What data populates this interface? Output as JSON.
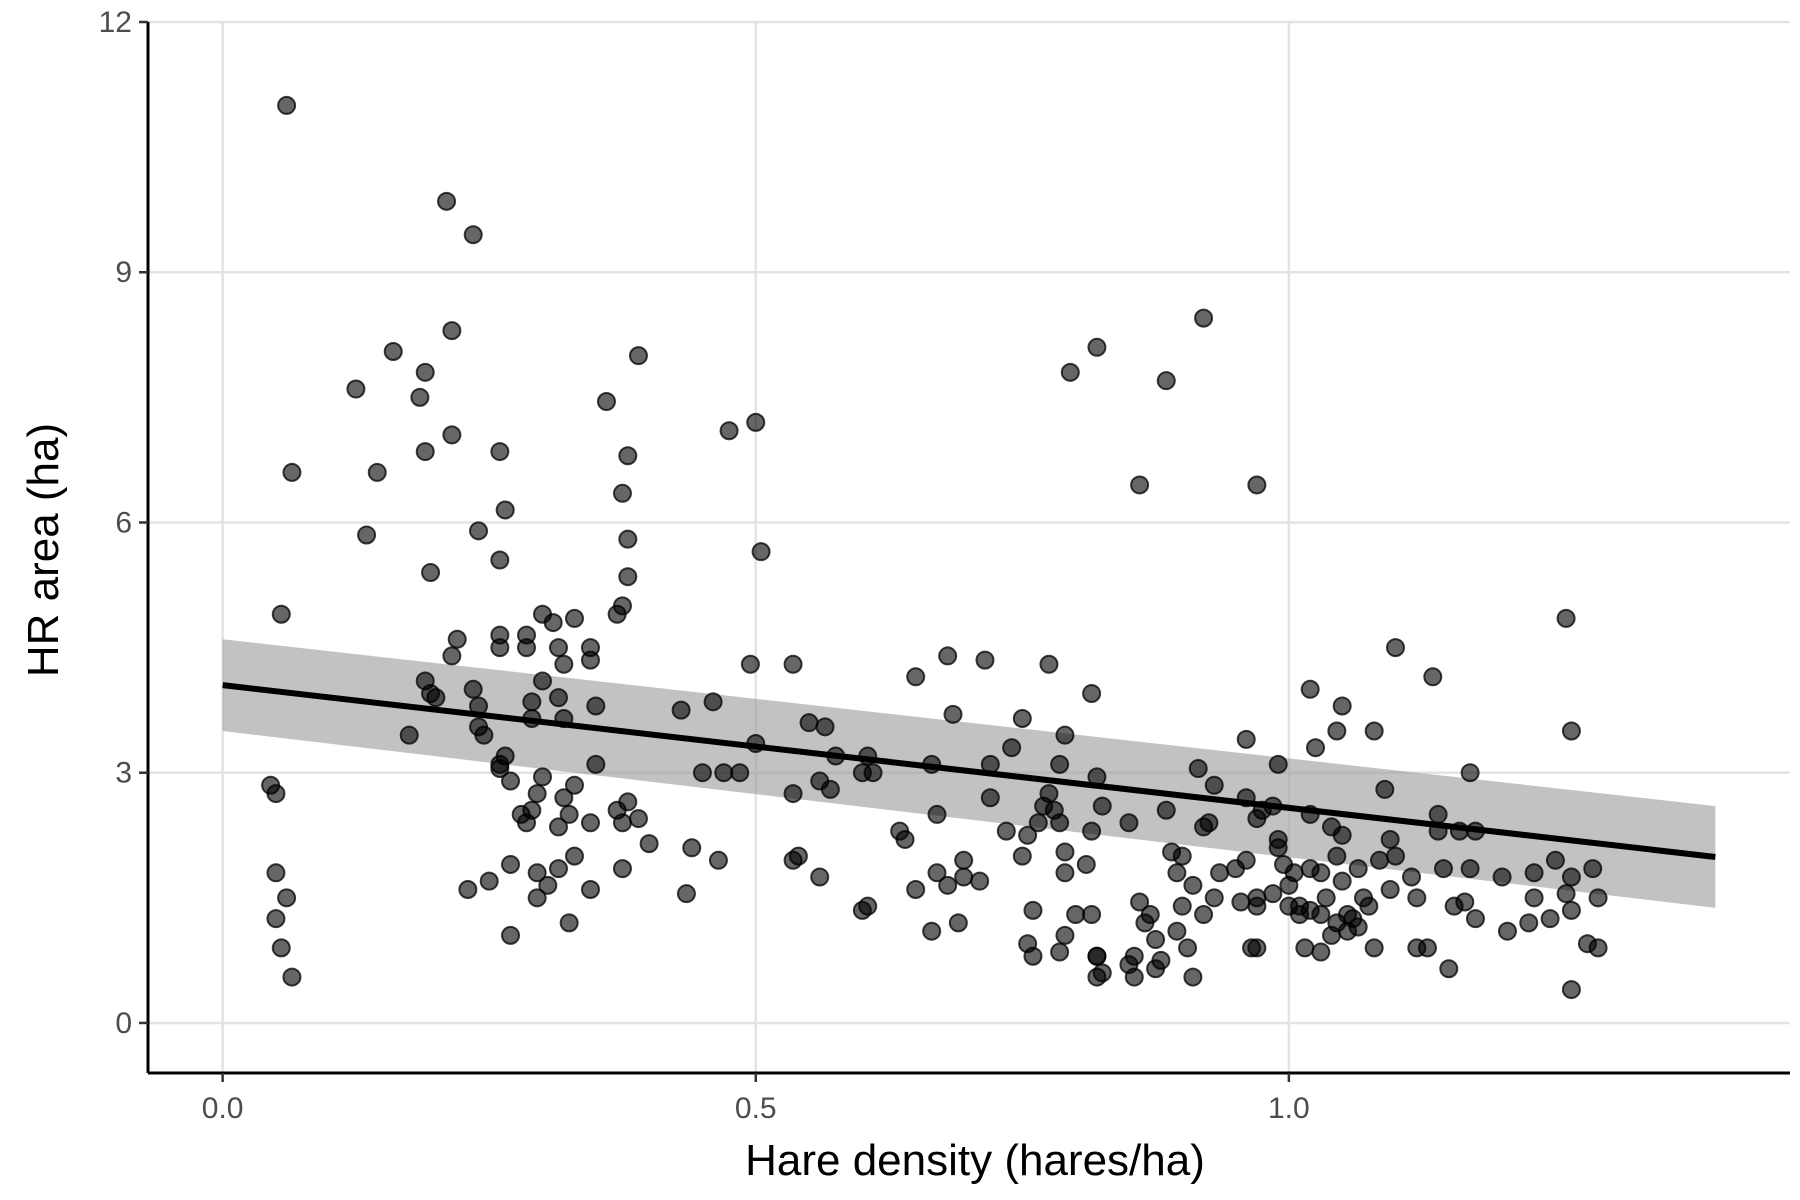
{
  "chart_data": {
    "type": "scatter",
    "title": "",
    "xlabel": "Hare density (hares/ha)",
    "ylabel": "HR area (ha)",
    "xlim": [
      -0.07,
      1.47
    ],
    "ylim": [
      -0.6,
      12
    ],
    "x_ticks": [
      0.0,
      0.5,
      1.0
    ],
    "x_tick_labels": [
      "0.0",
      "0.5",
      "1.0"
    ],
    "y_ticks": [
      0,
      3,
      6,
      9,
      12
    ],
    "y_tick_labels": [
      "0",
      "3",
      "6",
      "9",
      "12"
    ],
    "grid": true,
    "legend": "none",
    "colors": {
      "points": "#000000",
      "band": "#999999",
      "trend": "#000000",
      "grid": "#e3e3e3"
    },
    "trend_line": {
      "x": [
        0.0,
        1.4
      ],
      "y": [
        4.05,
        1.99
      ],
      "ci_lower": [
        3.5,
        1.38
      ],
      "ci_upper": [
        4.6,
        2.6
      ]
    },
    "points": [
      [
        0.06,
        11.0
      ],
      [
        0.065,
        6.6
      ],
      [
        0.055,
        4.9
      ],
      [
        0.045,
        2.85
      ],
      [
        0.05,
        2.75
      ],
      [
        0.05,
        1.8
      ],
      [
        0.05,
        1.25
      ],
      [
        0.06,
        1.5
      ],
      [
        0.055,
        0.9
      ],
      [
        0.065,
        0.55
      ],
      [
        0.21,
        9.85
      ],
      [
        0.235,
        9.45
      ],
      [
        0.215,
        8.3
      ],
      [
        0.16,
        8.05
      ],
      [
        0.125,
        7.6
      ],
      [
        0.19,
        7.8
      ],
      [
        0.185,
        7.5
      ],
      [
        0.215,
        7.05
      ],
      [
        0.19,
        6.85
      ],
      [
        0.145,
        6.6
      ],
      [
        0.135,
        5.85
      ],
      [
        0.195,
        5.4
      ],
      [
        0.24,
        5.9
      ],
      [
        0.26,
        6.85
      ],
      [
        0.265,
        6.15
      ],
      [
        0.26,
        5.55
      ],
      [
        0.22,
        4.6
      ],
      [
        0.215,
        4.4
      ],
      [
        0.19,
        4.1
      ],
      [
        0.2,
        3.9
      ],
      [
        0.195,
        3.95
      ],
      [
        0.175,
        3.45
      ],
      [
        0.235,
        4.0
      ],
      [
        0.24,
        3.8
      ],
      [
        0.24,
        3.55
      ],
      [
        0.245,
        3.45
      ],
      [
        0.26,
        3.1
      ],
      [
        0.265,
        3.2
      ],
      [
        0.26,
        3.05
      ],
      [
        0.27,
        2.9
      ],
      [
        0.25,
        1.7
      ],
      [
        0.23,
        1.6
      ],
      [
        0.27,
        1.9
      ],
      [
        0.27,
        1.05
      ],
      [
        0.3,
        4.9
      ],
      [
        0.31,
        4.8
      ],
      [
        0.285,
        4.65
      ],
      [
        0.26,
        4.65
      ],
      [
        0.26,
        4.5
      ],
      [
        0.285,
        4.5
      ],
      [
        0.315,
        4.5
      ],
      [
        0.32,
        4.3
      ],
      [
        0.33,
        4.85
      ],
      [
        0.3,
        4.1
      ],
      [
        0.29,
        3.85
      ],
      [
        0.315,
        3.9
      ],
      [
        0.32,
        3.65
      ],
      [
        0.29,
        3.65
      ],
      [
        0.3,
        2.95
      ],
      [
        0.295,
        2.75
      ],
      [
        0.33,
        2.85
      ],
      [
        0.32,
        2.7
      ],
      [
        0.29,
        2.55
      ],
      [
        0.28,
        2.5
      ],
      [
        0.285,
        2.4
      ],
      [
        0.315,
        2.35
      ],
      [
        0.325,
        2.5
      ],
      [
        0.33,
        2.0
      ],
      [
        0.315,
        1.85
      ],
      [
        0.295,
        1.8
      ],
      [
        0.305,
        1.65
      ],
      [
        0.295,
        1.5
      ],
      [
        0.325,
        1.2
      ],
      [
        0.345,
        4.5
      ],
      [
        0.345,
        4.35
      ],
      [
        0.36,
        7.45
      ],
      [
        0.37,
        4.9
      ],
      [
        0.375,
        5.0
      ],
      [
        0.38,
        6.8
      ],
      [
        0.375,
        6.35
      ],
      [
        0.38,
        5.8
      ],
      [
        0.38,
        5.35
      ],
      [
        0.39,
        8.0
      ],
      [
        0.35,
        3.8
      ],
      [
        0.35,
        3.1
      ],
      [
        0.345,
        2.4
      ],
      [
        0.37,
        2.55
      ],
      [
        0.38,
        2.65
      ],
      [
        0.375,
        2.4
      ],
      [
        0.39,
        2.45
      ],
      [
        0.375,
        1.85
      ],
      [
        0.345,
        1.6
      ],
      [
        0.4,
        2.15
      ],
      [
        0.43,
        3.75
      ],
      [
        0.46,
        3.85
      ],
      [
        0.45,
        3.0
      ],
      [
        0.47,
        3.0
      ],
      [
        0.44,
        2.1
      ],
      [
        0.465,
        1.95
      ],
      [
        0.435,
        1.55
      ],
      [
        0.475,
        7.1
      ],
      [
        0.5,
        7.2
      ],
      [
        0.505,
        5.65
      ],
      [
        0.495,
        4.3
      ],
      [
        0.485,
        3.0
      ],
      [
        0.5,
        3.35
      ],
      [
        0.535,
        4.3
      ],
      [
        0.55,
        3.6
      ],
      [
        0.565,
        3.55
      ],
      [
        0.535,
        2.75
      ],
      [
        0.56,
        2.9
      ],
      [
        0.57,
        2.8
      ],
      [
        0.575,
        3.2
      ],
      [
        0.54,
        2.0
      ],
      [
        0.535,
        1.95
      ],
      [
        0.56,
        1.75
      ],
      [
        0.605,
        3.2
      ],
      [
        0.61,
        3.0
      ],
      [
        0.6,
        3.0
      ],
      [
        0.6,
        1.35
      ],
      [
        0.605,
        1.4
      ],
      [
        0.65,
        4.15
      ],
      [
        0.68,
        4.4
      ],
      [
        0.685,
        3.7
      ],
      [
        0.715,
        4.35
      ],
      [
        0.665,
        3.1
      ],
      [
        0.635,
        2.3
      ],
      [
        0.64,
        2.2
      ],
      [
        0.67,
        2.5
      ],
      [
        0.65,
        1.6
      ],
      [
        0.665,
        1.1
      ],
      [
        0.68,
        1.65
      ],
      [
        0.67,
        1.8
      ],
      [
        0.695,
        1.95
      ],
      [
        0.695,
        1.75
      ],
      [
        0.71,
        1.7
      ],
      [
        0.69,
        1.2
      ],
      [
        0.72,
        3.1
      ],
      [
        0.72,
        2.7
      ],
      [
        0.74,
        3.3
      ],
      [
        0.75,
        3.65
      ],
      [
        0.735,
        2.3
      ],
      [
        0.755,
        2.25
      ],
      [
        0.765,
        2.4
      ],
      [
        0.775,
        4.3
      ],
      [
        0.77,
        2.6
      ],
      [
        0.78,
        2.55
      ],
      [
        0.75,
        2.0
      ],
      [
        0.76,
        1.35
      ],
      [
        0.755,
        0.95
      ],
      [
        0.76,
        0.8
      ],
      [
        0.79,
        3.45
      ],
      [
        0.785,
        3.1
      ],
      [
        0.775,
        2.75
      ],
      [
        0.785,
        2.4
      ],
      [
        0.79,
        2.05
      ],
      [
        0.8,
        1.3
      ],
      [
        0.79,
        1.05
      ],
      [
        0.785,
        0.85
      ],
      [
        0.79,
        1.8
      ],
      [
        0.795,
        7.8
      ],
      [
        0.82,
        8.1
      ],
      [
        0.815,
        3.95
      ],
      [
        0.82,
        2.95
      ],
      [
        0.825,
        2.6
      ],
      [
        0.815,
        2.3
      ],
      [
        0.81,
        1.9
      ],
      [
        0.815,
        1.3
      ],
      [
        0.82,
        0.8
      ],
      [
        0.82,
        0.8
      ],
      [
        0.82,
        0.55
      ],
      [
        0.825,
        0.6
      ],
      [
        0.86,
        6.45
      ],
      [
        0.885,
        7.7
      ],
      [
        0.92,
        8.45
      ],
      [
        0.85,
        2.4
      ],
      [
        0.86,
        1.45
      ],
      [
        0.87,
        1.3
      ],
      [
        0.855,
        0.8
      ],
      [
        0.865,
        1.2
      ],
      [
        0.85,
        0.7
      ],
      [
        0.855,
        0.55
      ],
      [
        0.875,
        1.0
      ],
      [
        0.88,
        0.75
      ],
      [
        0.875,
        0.65
      ],
      [
        0.89,
        2.05
      ],
      [
        0.885,
        2.55
      ],
      [
        0.9,
        2.0
      ],
      [
        0.895,
        1.8
      ],
      [
        0.91,
        1.65
      ],
      [
        0.9,
        1.4
      ],
      [
        0.895,
        1.1
      ],
      [
        0.905,
        0.9
      ],
      [
        0.91,
        0.55
      ],
      [
        0.92,
        1.3
      ],
      [
        0.915,
        3.05
      ],
      [
        0.93,
        2.85
      ],
      [
        0.925,
        2.4
      ],
      [
        0.92,
        2.35
      ],
      [
        0.935,
        1.8
      ],
      [
        0.93,
        1.5
      ],
      [
        0.95,
        1.85
      ],
      [
        0.96,
        1.95
      ],
      [
        0.955,
        1.45
      ],
      [
        0.965,
        0.9
      ],
      [
        0.97,
        0.9
      ],
      [
        0.97,
        6.45
      ],
      [
        0.96,
        3.4
      ],
      [
        0.96,
        2.7
      ],
      [
        0.975,
        2.55
      ],
      [
        0.97,
        2.45
      ],
      [
        0.97,
        1.5
      ],
      [
        0.97,
        1.4
      ],
      [
        0.99,
        3.1
      ],
      [
        0.985,
        2.6
      ],
      [
        0.99,
        2.2
      ],
      [
        0.995,
        1.9
      ],
      [
        0.985,
        1.55
      ],
      [
        1.0,
        1.65
      ],
      [
        1.0,
        1.4
      ],
      [
        1.005,
        1.8
      ],
      [
        1.01,
        1.4
      ],
      [
        1.01,
        1.3
      ],
      [
        0.99,
        2.1
      ],
      [
        1.02,
        4.0
      ],
      [
        1.025,
        3.3
      ],
      [
        1.045,
        3.5
      ],
      [
        1.05,
        3.8
      ],
      [
        1.02,
        2.5
      ],
      [
        1.04,
        2.35
      ],
      [
        1.045,
        2.0
      ],
      [
        1.05,
        2.25
      ],
      [
        1.02,
        1.85
      ],
      [
        1.03,
        1.8
      ],
      [
        1.035,
        1.5
      ],
      [
        1.02,
        1.35
      ],
      [
        1.03,
        1.3
      ],
      [
        1.04,
        1.05
      ],
      [
        1.045,
        1.2
      ],
      [
        1.055,
        1.1
      ],
      [
        1.015,
        0.9
      ],
      [
        1.03,
        0.85
      ],
      [
        1.05,
        1.7
      ],
      [
        1.055,
        1.3
      ],
      [
        1.065,
        1.85
      ],
      [
        1.07,
        1.5
      ],
      [
        1.06,
        1.25
      ],
      [
        1.065,
        1.15
      ],
      [
        1.075,
        1.4
      ],
      [
        1.08,
        3.5
      ],
      [
        1.09,
        2.8
      ],
      [
        1.095,
        2.2
      ],
      [
        1.095,
        1.6
      ],
      [
        1.085,
        1.95
      ],
      [
        1.08,
        0.9
      ],
      [
        1.1,
        4.5
      ],
      [
        1.1,
        2.0
      ],
      [
        1.115,
        1.75
      ],
      [
        1.12,
        1.5
      ],
      [
        1.13,
        0.9
      ],
      [
        1.12,
        0.9
      ],
      [
        1.135,
        4.15
      ],
      [
        1.14,
        2.5
      ],
      [
        1.14,
        2.3
      ],
      [
        1.145,
        1.85
      ],
      [
        1.15,
        0.65
      ],
      [
        1.155,
        1.4
      ],
      [
        1.16,
        2.3
      ],
      [
        1.165,
        1.45
      ],
      [
        1.17,
        3.0
      ],
      [
        1.175,
        2.3
      ],
      [
        1.17,
        1.85
      ],
      [
        1.175,
        1.25
      ],
      [
        1.2,
        1.75
      ],
      [
        1.205,
        1.1
      ],
      [
        1.225,
        1.2
      ],
      [
        1.23,
        1.8
      ],
      [
        1.23,
        1.5
      ],
      [
        1.245,
        1.25
      ],
      [
        1.25,
        1.95
      ],
      [
        1.26,
        1.55
      ],
      [
        1.26,
        4.85
      ],
      [
        1.265,
        3.5
      ],
      [
        1.265,
        1.75
      ],
      [
        1.265,
        1.35
      ],
      [
        1.265,
        0.4
      ],
      [
        1.28,
        0.95
      ],
      [
        1.285,
        1.85
      ],
      [
        1.29,
        1.5
      ],
      [
        1.29,
        0.9
      ]
    ]
  }
}
